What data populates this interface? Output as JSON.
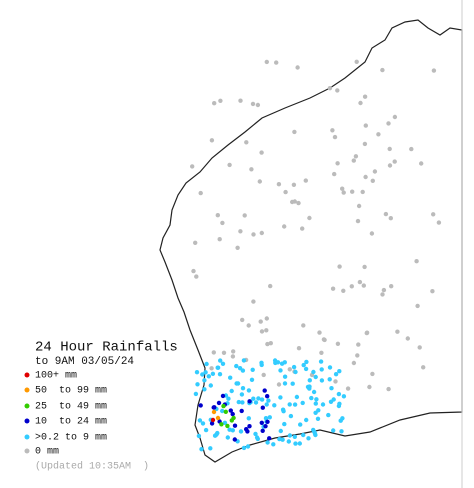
{
  "legend": {
    "title": "24 Hour Rainfalls",
    "subtitle": "to 9AM 03/05/24",
    "items": [
      {
        "label": "100+ mm",
        "color": "#e00000"
      },
      {
        "label": "50  to 99 mm",
        "color": "#ff9900"
      },
      {
        "label": "25  to 49 mm",
        "color": "#33cc00"
      },
      {
        "label": "10  to 24 mm",
        "color": "#0000cc"
      },
      {
        "label": ">0.2 to 9 mm",
        "color": "#33ccff"
      },
      {
        "label": "0 mm",
        "color": "#bbbbbb"
      }
    ],
    "updated": "(Updated 10:35AM  )"
  }
}
